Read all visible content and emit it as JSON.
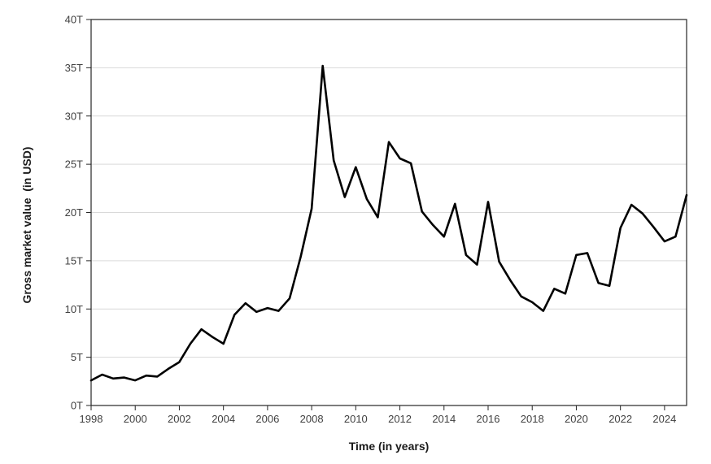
{
  "figure": {
    "background_color": "#ffffff"
  },
  "chart_data": {
    "type": "line",
    "title": "",
    "xlabel": "Time (in years)",
    "ylabel": "Gross market value  (in USD)",
    "series_name": "Gross market value",
    "x": [
      1998,
      1998.5,
      1999,
      1999.5,
      2000,
      2000.5,
      2001,
      2001.5,
      2002,
      2002.5,
      2003,
      2003.5,
      2004,
      2004.5,
      2005,
      2005.5,
      2006,
      2006.5,
      2007,
      2007.5,
      2008,
      2008.5,
      2009,
      2009.5,
      2010,
      2010.5,
      2011,
      2011.5,
      2012,
      2012.5,
      2013,
      2013.5,
      2014,
      2014.5,
      2015,
      2015.5,
      2016,
      2016.5,
      2017,
      2017.5,
      2018,
      2018.5,
      2019,
      2019.5,
      2020,
      2020.5,
      2021,
      2021.5,
      2022,
      2022.5,
      2023,
      2023.5,
      2024,
      2024.5,
      2025
    ],
    "values": [
      2.6,
      3.2,
      2.8,
      2.9,
      2.6,
      3.1,
      3.0,
      3.8,
      4.5,
      6.4,
      7.9,
      7.1,
      6.4,
      9.4,
      10.6,
      9.7,
      10.1,
      9.8,
      11.1,
      15.4,
      20.4,
      35.2,
      25.4,
      21.6,
      24.7,
      21.4,
      19.5,
      27.3,
      25.6,
      25.1,
      20.1,
      18.7,
      17.5,
      20.9,
      15.6,
      14.6,
      21.1,
      14.9,
      13.0,
      11.3,
      10.7,
      9.8,
      12.1,
      11.6,
      15.6,
      15.8,
      12.7,
      12.4,
      18.4,
      20.8,
      19.9,
      18.5,
      17.0,
      17.5,
      21.8
    ],
    "value_unit": "trillion USD",
    "xlim": [
      1998,
      2025
    ],
    "ylim": [
      0,
      40
    ],
    "y_tick_step": 5,
    "y_tick_labels": [
      "0T",
      "5T",
      "10T",
      "15T",
      "20T",
      "25T",
      "30T",
      "35T",
      "40T"
    ],
    "x_tick_labels": [
      "1998",
      "2000",
      "2002",
      "2004",
      "2006",
      "2008",
      "2010",
      "2012",
      "2014",
      "2016",
      "2018",
      "2020",
      "2022",
      "2024"
    ],
    "x_tick_years": [
      1998,
      2000,
      2002,
      2004,
      2006,
      2008,
      2010,
      2012,
      2014,
      2016,
      2018,
      2020,
      2022,
      2024
    ],
    "grid": "horizontal",
    "legend": "none",
    "line_color": "#000000",
    "line_width": 2.6,
    "grid_color": "#d9d9d9",
    "axis_box_color": "#262626",
    "tick_color": "#262626",
    "tick_label_color": "#404040"
  }
}
